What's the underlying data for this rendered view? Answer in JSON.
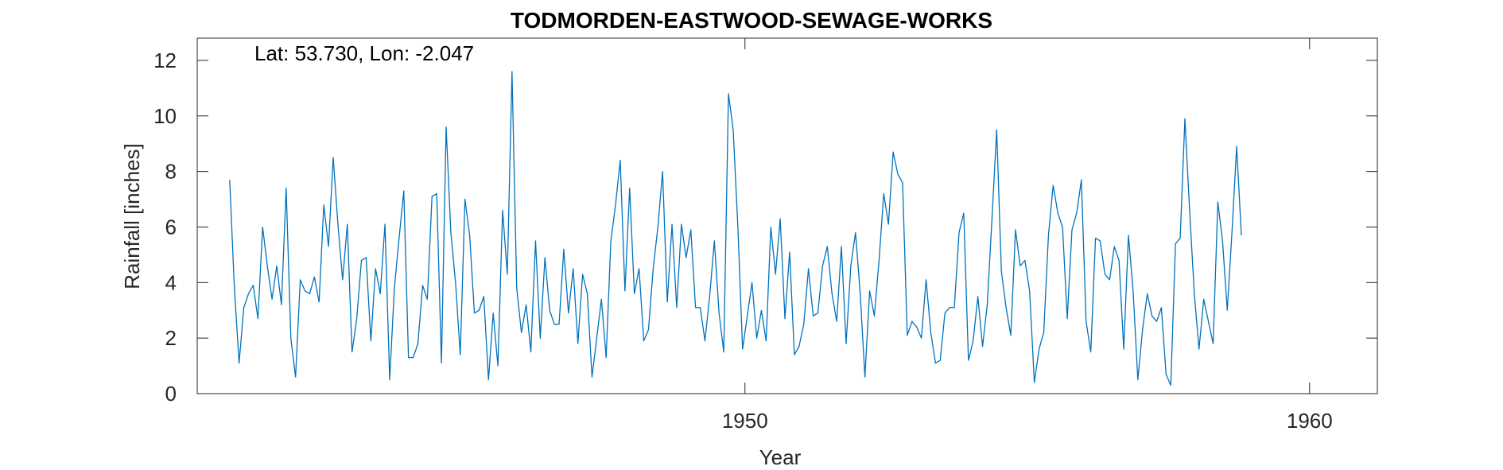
{
  "chart_data": {
    "type": "line",
    "title": "TODMORDEN-EASTWOOD-SEWAGE-WORKS",
    "annotation": "Lat: 53.730, Lon: -2.047",
    "xlabel": "Year",
    "ylabel": "Rainfall [inches]",
    "xlim": [
      1940.3,
      1961.2
    ],
    "ylim": [
      0,
      12.8
    ],
    "xticks": [
      1950,
      1960
    ],
    "yticks": [
      0,
      2,
      4,
      6,
      8,
      10,
      12
    ],
    "grid": false,
    "line_color": "#0072BD",
    "start_year": 1940.875,
    "step_years": 0.0833333,
    "values": [
      7.7,
      3.8,
      1.1,
      3.1,
      3.6,
      3.9,
      2.7,
      6.0,
      4.6,
      3.4,
      4.6,
      3.2,
      7.4,
      2.0,
      0.6,
      4.1,
      3.7,
      3.6,
      4.2,
      3.3,
      6.8,
      5.3,
      8.5,
      6.1,
      4.1,
      6.1,
      1.5,
      2.7,
      4.8,
      4.9,
      1.9,
      4.5,
      3.6,
      6.1,
      0.5,
      3.8,
      5.6,
      7.3,
      1.3,
      1.3,
      1.8,
      3.9,
      3.4,
      7.1,
      7.2,
      1.1,
      9.6,
      5.8,
      4.0,
      1.4,
      7.0,
      5.7,
      2.9,
      3.0,
      3.5,
      0.5,
      2.9,
      1.0,
      6.6,
      4.3,
      11.6,
      3.8,
      2.2,
      3.2,
      1.5,
      5.5,
      2.0,
      4.9,
      3.0,
      2.5,
      2.5,
      5.2,
      2.9,
      4.5,
      1.8,
      4.3,
      3.6,
      0.6,
      2.0,
      3.4,
      1.3,
      5.5,
      6.8,
      8.4,
      3.7,
      7.4,
      3.6,
      4.5,
      1.9,
      2.3,
      4.5,
      6.0,
      8.0,
      3.3,
      6.1,
      3.1,
      6.1,
      4.9,
      5.9,
      3.1,
      3.1,
      1.9,
      3.5,
      5.5,
      2.9,
      1.5,
      10.8,
      9.5,
      6.0,
      1.6,
      2.8,
      4.0,
      2.0,
      3.0,
      1.9,
      6.0,
      4.3,
      6.3,
      2.7,
      5.1,
      1.4,
      1.7,
      2.5,
      4.5,
      2.8,
      2.9,
      4.6,
      5.3,
      3.6,
      2.6,
      5.3,
      1.8,
      4.6,
      5.8,
      3.6,
      0.6,
      3.7,
      2.8,
      4.8,
      7.2,
      6.1,
      8.7,
      7.9,
      7.6,
      2.1,
      2.6,
      2.4,
      2.0,
      4.1,
      2.2,
      1.1,
      1.2,
      2.9,
      3.1,
      3.1,
      5.8,
      6.5,
      1.2,
      1.9,
      3.5,
      1.7,
      3.2,
      6.3,
      9.5,
      4.4,
      3.1,
      2.1,
      5.9,
      4.6,
      4.8,
      3.7,
      0.4,
      1.6,
      2.2,
      5.7,
      7.5,
      6.5,
      6.0,
      2.7,
      5.9,
      6.5,
      7.7,
      2.6,
      1.5,
      5.6,
      5.5,
      4.3,
      4.1,
      5.3,
      4.8,
      1.6,
      5.7,
      3.7,
      0.5,
      2.3,
      3.6,
      2.8,
      2.6,
      3.1,
      0.7,
      0.3,
      5.4,
      5.6,
      9.9,
      6.6,
      3.6,
      1.6,
      3.4,
      2.6,
      1.8,
      6.9,
      5.5,
      3.0,
      5.8,
      8.9,
      5.7
    ]
  }
}
